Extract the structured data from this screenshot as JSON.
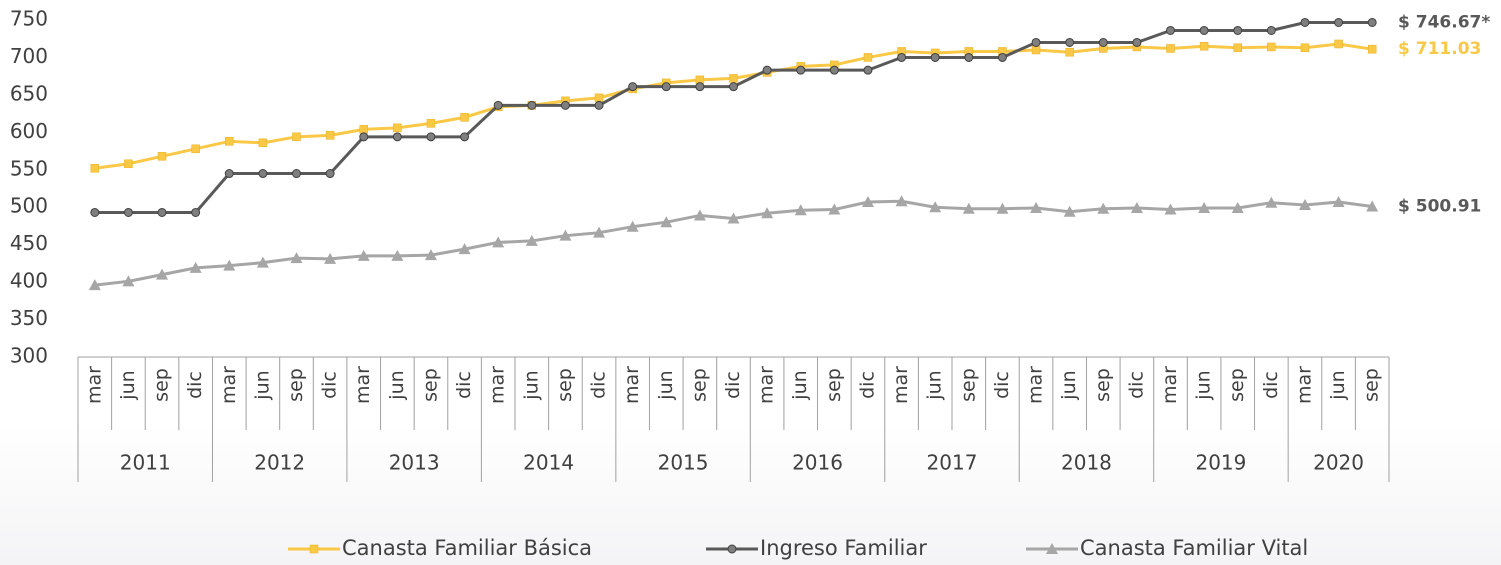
{
  "chart_data": {
    "type": "line",
    "year_groups": [
      {
        "year": "2011",
        "months": [
          "mar",
          "jun",
          "sep",
          "dic"
        ]
      },
      {
        "year": "2012",
        "months": [
          "mar",
          "jun",
          "sep",
          "dic"
        ]
      },
      {
        "year": "2013",
        "months": [
          "mar",
          "jun",
          "sep",
          "dic"
        ]
      },
      {
        "year": "2014",
        "months": [
          "mar",
          "jun",
          "sep",
          "dic"
        ]
      },
      {
        "year": "2015",
        "months": [
          "mar",
          "jun",
          "sep",
          "dic"
        ]
      },
      {
        "year": "2016",
        "months": [
          "mar",
          "jun",
          "sep",
          "dic"
        ]
      },
      {
        "year": "2017",
        "months": [
          "mar",
          "jun",
          "sep",
          "dic"
        ]
      },
      {
        "year": "2018",
        "months": [
          "mar",
          "jun",
          "sep",
          "dic"
        ]
      },
      {
        "year": "2019",
        "months": [
          "mar",
          "jun",
          "sep",
          "dic"
        ]
      },
      {
        "year": "2020",
        "months": [
          "mar",
          "jun",
          "sep"
        ]
      }
    ],
    "series": [
      {
        "name": "Canasta Familiar Básica",
        "color": "#f9c846",
        "marker": "square",
        "end_label": "$ 711.03",
        "values": [
          552,
          558,
          568,
          578,
          588,
          586,
          594,
          596,
          604,
          606,
          612,
          620,
          634,
          636,
          642,
          646,
          658,
          666,
          670,
          672,
          680,
          688,
          690,
          700,
          708,
          706,
          708,
          708,
          710,
          707,
          712,
          714,
          712,
          715,
          713,
          714,
          713,
          718,
          711.03
        ]
      },
      {
        "name": "Ingreso Familiar",
        "color": "#595959",
        "marker": "circle",
        "end_label": "$ 746.67*",
        "values": [
          493,
          493,
          493,
          493,
          545,
          545,
          545,
          545,
          594,
          594,
          594,
          594,
          636,
          636,
          636,
          636,
          661,
          661,
          661,
          661,
          683,
          683,
          683,
          683,
          700,
          700,
          700,
          700,
          720,
          720,
          720,
          720,
          736,
          736,
          736,
          736,
          746.67,
          746.67,
          746.67
        ]
      },
      {
        "name": "Canasta Familiar Vital",
        "color": "#a6a6a6",
        "marker": "triangle",
        "end_label": "$ 500.91",
        "values": [
          396,
          401,
          410,
          419,
          422,
          426,
          432,
          431,
          435,
          435,
          436,
          444,
          453,
          455,
          462,
          466,
          474,
          480,
          489,
          485,
          492,
          496,
          497,
          507,
          508,
          500,
          498,
          498,
          499,
          494,
          498,
          499,
          497,
          499,
          499,
          506,
          503,
          507,
          500.91
        ]
      }
    ],
    "ylim": [
      300,
      750
    ],
    "yticks": [
      300,
      350,
      400,
      450,
      500,
      550,
      600,
      650,
      700,
      750
    ],
    "grid": false,
    "legend": "bottom"
  }
}
